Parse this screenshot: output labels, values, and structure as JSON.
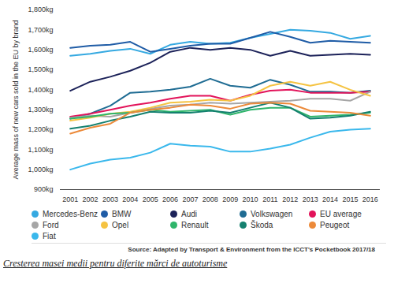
{
  "chart_data": {
    "type": "line",
    "y_label": "Average mass of new cars sold in the EU by brand",
    "source": "Source: Adapted by Transport & Environment from the ICCT's Pocketbook 2017/18",
    "caption": "Cresterea masei medii pentru diferite mărci de autoturisme",
    "x": [
      2001,
      2002,
      2003,
      2004,
      2005,
      2006,
      2007,
      2008,
      2009,
      2010,
      2011,
      2012,
      2013,
      2014,
      2015,
      2016
    ],
    "xlim": [
      2000.5,
      2016.5
    ],
    "xticks": [
      2001,
      2002,
      2003,
      2004,
      2005,
      2006,
      2007,
      2008,
      2009,
      2010,
      2011,
      2012,
      2013,
      2014,
      2015,
      2016
    ],
    "ylim": [
      900,
      1800
    ],
    "yticks": [
      {
        "value": 900,
        "label": "900kg"
      },
      {
        "value": 1000,
        "label": "1,000kg"
      },
      {
        "value": 1100,
        "label": "1,100kg"
      },
      {
        "value": 1200,
        "label": "1,200kg"
      },
      {
        "value": 1300,
        "label": "1,300kg"
      },
      {
        "value": 1400,
        "label": "1,400kg"
      },
      {
        "value": 1500,
        "label": "1,500kg"
      },
      {
        "value": 1600,
        "label": "1,600kg"
      },
      {
        "value": 1700,
        "label": "1,700kg"
      },
      {
        "value": 1800,
        "label": "1,800kg"
      }
    ],
    "grid": false,
    "legend": "bottom",
    "series": [
      {
        "name": "Mercedes-Benz",
        "color": "#35a9e1",
        "values": [
          1570,
          1580,
          1595,
          1605,
          1580,
          1625,
          1640,
          1630,
          1635,
          1660,
          1680,
          1700,
          1695,
          1685,
          1655,
          1670
        ]
      },
      {
        "name": "BMW",
        "color": "#1f5ca6",
        "values": [
          1610,
          1620,
          1625,
          1640,
          1590,
          1605,
          1620,
          1630,
          1630,
          1660,
          1690,
          1665,
          1635,
          1645,
          1640,
          1635
        ]
      },
      {
        "name": "Audi",
        "color": "#1c2259",
        "values": [
          1395,
          1440,
          1465,
          1495,
          1535,
          1590,
          1610,
          1600,
          1610,
          1600,
          1570,
          1595,
          1570,
          1575,
          1580,
          1575
        ]
      },
      {
        "name": "Volkswagen",
        "color": "#1f6c93",
        "values": [
          1255,
          1280,
          1320,
          1385,
          1390,
          1400,
          1415,
          1455,
          1420,
          1410,
          1450,
          1425,
          1390,
          1390,
          1385,
          1395
        ]
      },
      {
        "name": "EU average",
        "color": "#e2135a",
        "values": [
          1265,
          1280,
          1300,
          1320,
          1335,
          1355,
          1370,
          1370,
          1345,
          1375,
          1395,
          1400,
          1385,
          1385,
          1385,
          1390
        ]
      },
      {
        "name": "Ford",
        "color": "#a6a6a6",
        "values": [
          1260,
          1270,
          1265,
          1285,
          1305,
          1320,
          1325,
          1335,
          1330,
          1335,
          1340,
          1345,
          1355,
          1355,
          1345,
          1390
        ]
      },
      {
        "name": "Opel",
        "color": "#f5c342",
        "values": [
          1245,
          1260,
          1280,
          1290,
          1310,
          1335,
          1340,
          1350,
          1345,
          1370,
          1420,
          1440,
          1420,
          1440,
          1400,
          1370
        ]
      },
      {
        "name": "Renault",
        "color": "#2fb56b",
        "values": [
          1255,
          1265,
          1280,
          1285,
          1300,
          1290,
          1295,
          1300,
          1275,
          1300,
          1310,
          1310,
          1265,
          1270,
          1275,
          1285
        ]
      },
      {
        "name": "Škoda",
        "color": "#14806f",
        "values": [
          1205,
          1220,
          1245,
          1265,
          1290,
          1285,
          1285,
          1295,
          1285,
          1310,
          1335,
          1310,
          1255,
          1260,
          1270,
          1290
        ]
      },
      {
        "name": "Peugeot",
        "color": "#ec8a3a",
        "values": [
          1180,
          1210,
          1230,
          1285,
          1300,
          1310,
          1325,
          1320,
          1305,
          1330,
          1335,
          1330,
          1295,
          1290,
          1285,
          1270
        ]
      },
      {
        "name": "Fiat",
        "color": "#3ab8ec",
        "values": [
          1000,
          1030,
          1050,
          1060,
          1085,
          1130,
          1120,
          1115,
          1090,
          1090,
          1105,
          1125,
          1160,
          1190,
          1200,
          1205
        ]
      }
    ]
  }
}
